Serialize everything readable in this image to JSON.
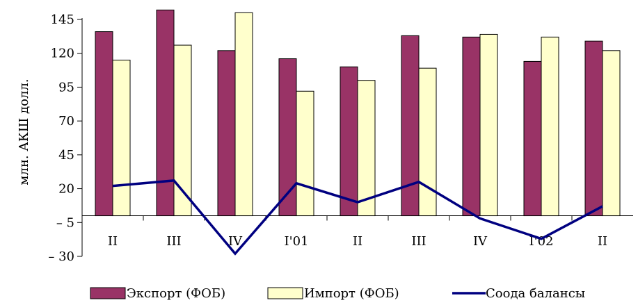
{
  "chart_data": {
    "type": "bar",
    "ylabel": "млн. АКШ долл.",
    "ylim": [
      -30,
      155
    ],
    "yticks": [
      145,
      120,
      95,
      70,
      45,
      20,
      -5,
      -30
    ],
    "ytick_labels": [
      "145",
      "120",
      "95",
      "70",
      "45",
      "20",
      "– 5",
      "– 30"
    ],
    "categories": [
      "II",
      "III",
      "IV",
      "I'01",
      "II",
      "III",
      "IV",
      "I'02",
      "II"
    ],
    "series": [
      {
        "name": "Экспорт (ФОБ)",
        "kind": "bar",
        "color": "#993366",
        "values": [
          136,
          152,
          122,
          116,
          110,
          133,
          132,
          114,
          129
        ]
      },
      {
        "name": "Импорт (ФОБ)",
        "kind": "bar",
        "color": "#FFFFCC",
        "values": [
          115,
          126,
          150,
          92,
          100,
          109,
          134,
          132,
          122
        ]
      },
      {
        "name": "Соода балансы",
        "kind": "line",
        "color": "#000080",
        "values": [
          22,
          26,
          -28,
          24,
          10,
          25,
          -2,
          -17,
          7
        ]
      }
    ],
    "grid": false,
    "legend_position": "bottom"
  }
}
